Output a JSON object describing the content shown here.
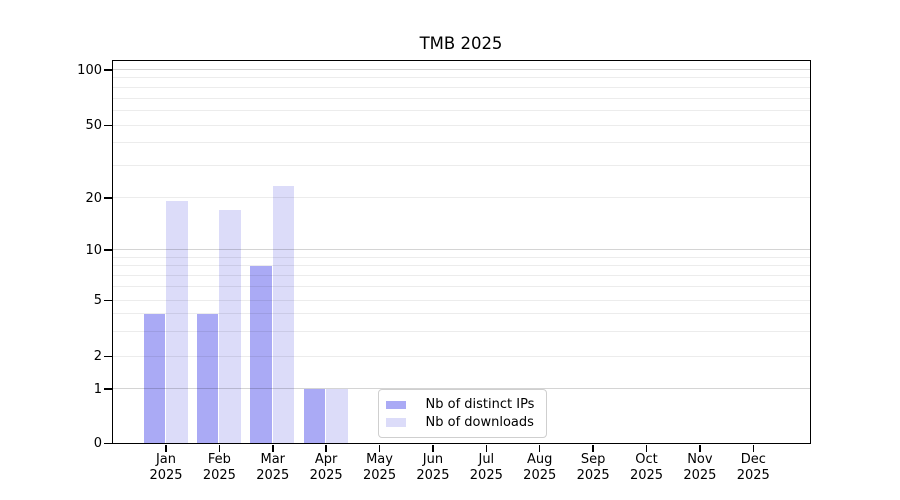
{
  "chart_data": {
    "type": "bar",
    "title": "TMB 2025",
    "categories": [
      "Jan 2025",
      "Feb 2025",
      "Mar 2025",
      "Apr 2025",
      "May 2025",
      "Jun 2025",
      "Jul 2025",
      "Aug 2025",
      "Sep 2025",
      "Oct 2025",
      "Nov 2025",
      "Dec 2025"
    ],
    "series": [
      {
        "name": "Nb of distinct IPs",
        "color": "#aaaaf5",
        "values": [
          4,
          4,
          8,
          1,
          0,
          0,
          0,
          0,
          0,
          0,
          0,
          0
        ]
      },
      {
        "name": "Nb of downloads",
        "color": "#dcdcf9",
        "values": [
          19,
          17,
          23,
          1,
          0,
          0,
          0,
          0,
          0,
          0,
          0,
          0
        ]
      }
    ],
    "xlabel": "",
    "ylabel": "",
    "yscale": "log-like (compressed toward zero)",
    "y_major_ticks": [
      0,
      1,
      2,
      5,
      10,
      20,
      50,
      100
    ],
    "y_minor_gridlines": [
      3,
      4,
      6,
      7,
      8,
      9,
      30,
      40,
      60,
      70,
      80,
      90
    ],
    "emphasized_gridlines": [
      1,
      10,
      100
    ],
    "ylim": [
      0,
      115
    ],
    "grid": "horizontal, drawn over bars",
    "legend_position": "inside plot, bottom center"
  },
  "colors": {
    "background": "#ffffff",
    "axis": "#000000",
    "series_ips": "#aaaaf5",
    "series_downloads": "#dcdcf9",
    "grid_minor": "#ececec",
    "grid_emphasized": "#d4d4d4",
    "legend_border": "#cfcfcf"
  }
}
